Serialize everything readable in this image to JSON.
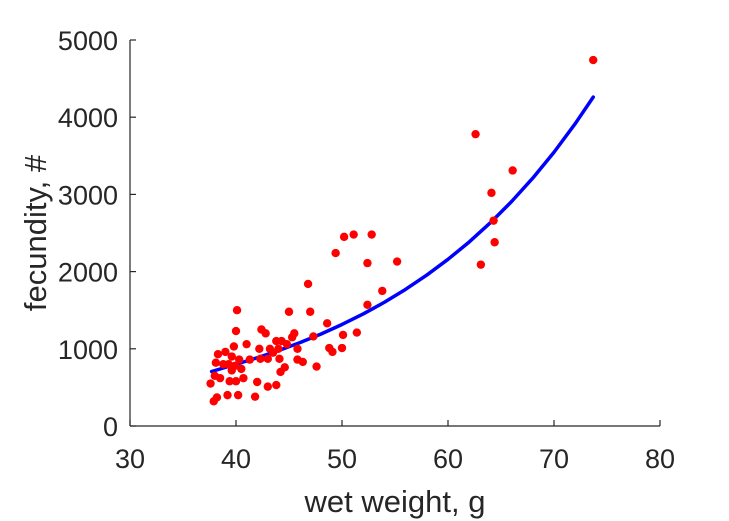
{
  "chart_data": {
    "type": "scatter",
    "title": "",
    "xlabel": "wet weight, g",
    "ylabel": "fecundity, #",
    "xlim": [
      30,
      80
    ],
    "ylim": [
      0,
      5000
    ],
    "xticks": [
      30,
      40,
      50,
      60,
      70,
      80
    ],
    "yticks": [
      0,
      1000,
      2000,
      3000,
      4000,
      5000
    ],
    "xtick_labels": [
      "30",
      "40",
      "50",
      "60",
      "70",
      "80"
    ],
    "ytick_labels": [
      "0",
      "1000",
      "2000",
      "3000",
      "4000",
      "5000"
    ],
    "grid": false,
    "legend": "none",
    "series": [
      {
        "type": "scatter",
        "color": "#ff0000",
        "points": [
          [
            37.6,
            550
          ],
          [
            37.9,
            320
          ],
          [
            38.0,
            650
          ],
          [
            38.1,
            820
          ],
          [
            38.2,
            370
          ],
          [
            38.3,
            930
          ],
          [
            38.5,
            620
          ],
          [
            38.8,
            800
          ],
          [
            39.0,
            960
          ],
          [
            39.2,
            400
          ],
          [
            39.3,
            800
          ],
          [
            39.4,
            580
          ],
          [
            39.6,
            900
          ],
          [
            39.6,
            720
          ],
          [
            39.8,
            1030
          ],
          [
            39.9,
            780
          ],
          [
            40.0,
            1230
          ],
          [
            40.0,
            580
          ],
          [
            40.1,
            1500
          ],
          [
            40.2,
            400
          ],
          [
            40.3,
            860
          ],
          [
            40.5,
            740
          ],
          [
            40.7,
            620
          ],
          [
            41.0,
            1060
          ],
          [
            41.3,
            860
          ],
          [
            41.8,
            380
          ],
          [
            42.0,
            570
          ],
          [
            42.2,
            1000
          ],
          [
            42.3,
            870
          ],
          [
            42.4,
            1250
          ],
          [
            42.8,
            1200
          ],
          [
            43.0,
            870
          ],
          [
            43.0,
            510
          ],
          [
            43.2,
            1000
          ],
          [
            43.5,
            950
          ],
          [
            43.8,
            1100
          ],
          [
            43.8,
            530
          ],
          [
            44.0,
            1000
          ],
          [
            44.1,
            870
          ],
          [
            44.2,
            700
          ],
          [
            44.3,
            1100
          ],
          [
            44.6,
            760
          ],
          [
            44.8,
            1060
          ],
          [
            45.0,
            1480
          ],
          [
            45.3,
            1150
          ],
          [
            45.5,
            1200
          ],
          [
            45.8,
            1000
          ],
          [
            45.8,
            860
          ],
          [
            46.3,
            830
          ],
          [
            46.8,
            1840
          ],
          [
            47.0,
            1480
          ],
          [
            47.3,
            1160
          ],
          [
            47.6,
            770
          ],
          [
            48.6,
            1330
          ],
          [
            48.8,
            1010
          ],
          [
            49.1,
            960
          ],
          [
            49.4,
            2240
          ],
          [
            50.0,
            1010
          ],
          [
            50.1,
            1180
          ],
          [
            50.2,
            2450
          ],
          [
            51.1,
            2480
          ],
          [
            51.4,
            1210
          ],
          [
            52.4,
            1570
          ],
          [
            52.4,
            2110
          ],
          [
            52.8,
            2480
          ],
          [
            53.8,
            1750
          ],
          [
            55.2,
            2130
          ],
          [
            62.6,
            3780
          ],
          [
            63.1,
            2090
          ],
          [
            64.1,
            3020
          ],
          [
            64.3,
            2660
          ],
          [
            64.4,
            2380
          ],
          [
            66.1,
            3310
          ],
          [
            73.7,
            4740
          ]
        ]
      },
      {
        "type": "fit-line",
        "color": "#0000ff",
        "points": [
          [
            37.7,
            706
          ],
          [
            40,
            800
          ],
          [
            42,
            884
          ],
          [
            44,
            976
          ],
          [
            46,
            1078
          ],
          [
            48,
            1190
          ],
          [
            50,
            1315
          ],
          [
            52,
            1452
          ],
          [
            54,
            1603
          ],
          [
            56,
            1770
          ],
          [
            58,
            1955
          ],
          [
            60,
            2159
          ],
          [
            62,
            2384
          ],
          [
            64,
            2633
          ],
          [
            66,
            2908
          ],
          [
            68,
            3211
          ],
          [
            70,
            3546
          ],
          [
            72,
            3916
          ],
          [
            73.7,
            4260
          ]
        ]
      }
    ]
  }
}
